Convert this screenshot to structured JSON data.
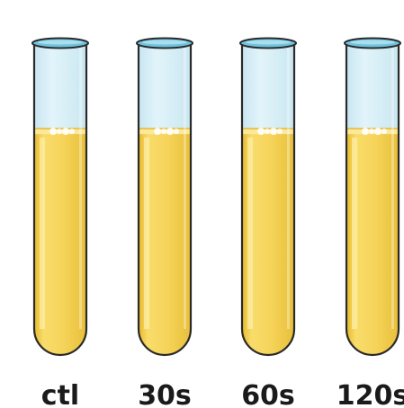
{
  "tubes": [
    {
      "label": "ctl",
      "fill_fraction": 0.73
    },
    {
      "label": "30s",
      "fill_fraction": 0.73
    },
    {
      "label": "60s",
      "fill_fraction": 0.73
    },
    {
      "label": "120s",
      "fill_fraction": 0.73
    }
  ],
  "colors": {
    "liquid": "#f6d45a",
    "liquid_dark": "#e9b92b",
    "glass": "#d7eff7",
    "glass_highlight": "#eaf7fb",
    "outline": "#2a2a2a",
    "rim": "#6fc3dd"
  }
}
